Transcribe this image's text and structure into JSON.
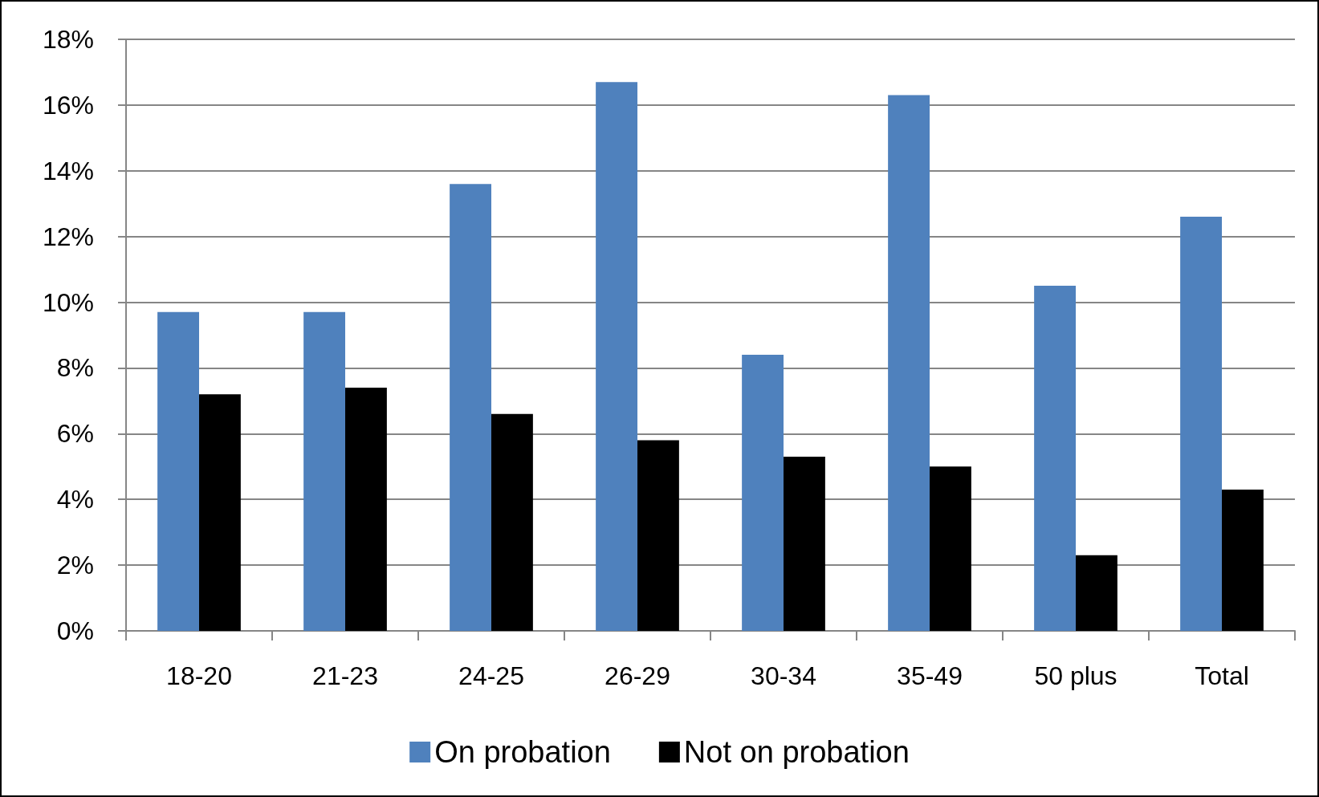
{
  "chart_data": {
    "type": "bar",
    "categories": [
      "18-20",
      "21-23",
      "24-25",
      "26-29",
      "30-34",
      "35-49",
      "50 plus",
      "Total"
    ],
    "series": [
      {
        "name": "On probation",
        "color": "#4f81bd",
        "values": [
          9.7,
          9.7,
          13.6,
          16.7,
          8.4,
          16.3,
          10.5,
          12.6
        ]
      },
      {
        "name": "Not on probation",
        "color": "#000000",
        "values": [
          7.2,
          7.4,
          6.6,
          5.8,
          5.3,
          5.0,
          2.3,
          4.3
        ]
      }
    ],
    "ylim": [
      0,
      18
    ],
    "yticks": [
      {
        "value": 0,
        "label": "0%"
      },
      {
        "value": 2,
        "label": "2%"
      },
      {
        "value": 4,
        "label": "4%"
      },
      {
        "value": 6,
        "label": "6%"
      },
      {
        "value": 8,
        "label": "8%"
      },
      {
        "value": 10,
        "label": "10%"
      },
      {
        "value": 12,
        "label": "12%"
      },
      {
        "value": 14,
        "label": "14%"
      },
      {
        "value": 16,
        "label": "16%"
      },
      {
        "value": 18,
        "label": "18%"
      }
    ],
    "grid": "y",
    "legend": "bottom"
  }
}
